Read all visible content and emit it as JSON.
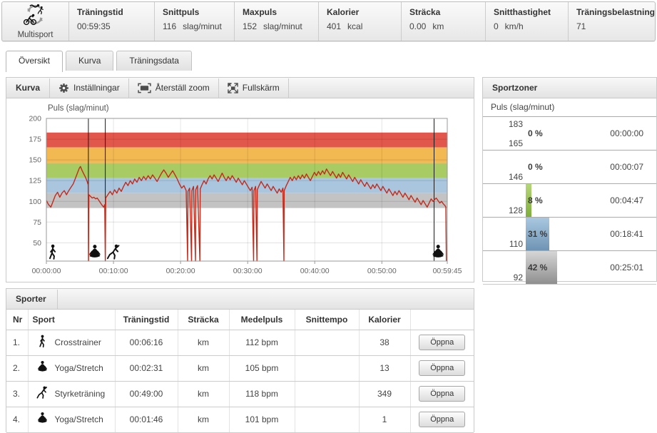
{
  "header": {
    "activity_label": "Multisport",
    "stats": [
      {
        "label": "Träningstid",
        "value": "00:59:35",
        "unit": ""
      },
      {
        "label": "Snittpuls",
        "value": "116",
        "unit": "slag/minut"
      },
      {
        "label": "Maxpuls",
        "value": "152",
        "unit": "slag/minut"
      },
      {
        "label": "Kalorier",
        "value": "401",
        "unit": "kcal"
      },
      {
        "label": "Sträcka",
        "value": "0.00",
        "unit": "km"
      },
      {
        "label": "Snitthastighet",
        "value": "0",
        "unit": "km/h"
      },
      {
        "label": "Träningsbelastning",
        "value": "71",
        "unit": ""
      }
    ]
  },
  "tabs": [
    {
      "label": "Översikt",
      "active": true
    },
    {
      "label": "Kurva",
      "active": false
    },
    {
      "label": "Träningsdata",
      "active": false
    }
  ],
  "curve_panel": {
    "title": "Kurva",
    "buttons": [
      {
        "label": "Inställningar",
        "icon": "gear-icon"
      },
      {
        "label": "Återställ zoom",
        "icon": "reset-zoom-icon"
      },
      {
        "label": "Fullskärm",
        "icon": "fullscreen-icon"
      }
    ]
  },
  "chart_data": {
    "type": "line",
    "title": "Puls (slag/minut)",
    "line_color": "#c22b1c",
    "ylim": [
      28,
      200
    ],
    "y_ticks": [
      200,
      175,
      150,
      125,
      100,
      75,
      50
    ],
    "duration_seconds": 3585,
    "x_ticks": [
      "00:00:00",
      "00:10:00",
      "00:20:00",
      "00:30:00",
      "00:40:00",
      "00:50:00",
      "00:59:45"
    ],
    "x_tick_seconds": [
      0,
      600,
      1200,
      1800,
      2400,
      3000,
      3585
    ],
    "zones": [
      {
        "from": 165,
        "to": 183,
        "color": "#e2574c"
      },
      {
        "from": 146,
        "to": 165,
        "color": "#f2b852"
      },
      {
        "from": 128,
        "to": 146,
        "color": "#a8cb63"
      },
      {
        "from": 110,
        "to": 128,
        "color": "#a9c6de"
      },
      {
        "from": 92,
        "to": 110,
        "color": "#c3c3c3"
      }
    ],
    "lap_markers_seconds": [
      376,
      527,
      3467
    ],
    "sport_icons": [
      {
        "icon": "crosstrainer-icon",
        "t": 55
      },
      {
        "icon": "yoga-icon",
        "t": 430
      },
      {
        "icon": "strength-icon",
        "t": 600
      },
      {
        "icon": "yoga-icon",
        "t": 3500
      }
    ],
    "series": [
      {
        "name": "Puls",
        "points": [
          [
            0,
            101
          ],
          [
            20,
            96
          ],
          [
            40,
            93
          ],
          [
            60,
            100
          ],
          [
            80,
            107
          ],
          [
            100,
            111
          ],
          [
            120,
            105
          ],
          [
            140,
            110
          ],
          [
            160,
            113
          ],
          [
            180,
            108
          ],
          [
            200,
            113
          ],
          [
            220,
            117
          ],
          [
            240,
            121
          ],
          [
            260,
            128
          ],
          [
            280,
            135
          ],
          [
            295,
            140
          ],
          [
            305,
            142
          ],
          [
            320,
            137
          ],
          [
            335,
            133
          ],
          [
            350,
            129
          ],
          [
            365,
            124
          ],
          [
            374,
            120
          ],
          [
            377,
            0
          ],
          [
            380,
            108
          ],
          [
            395,
            106
          ],
          [
            410,
            104
          ],
          [
            425,
            105
          ],
          [
            440,
            103
          ],
          [
            455,
            104
          ],
          [
            470,
            101
          ],
          [
            485,
            98
          ],
          [
            500,
            95
          ],
          [
            512,
            93
          ],
          [
            522,
            96
          ],
          [
            527,
            0
          ],
          [
            531,
            104
          ],
          [
            550,
            108
          ],
          [
            570,
            112
          ],
          [
            590,
            108
          ],
          [
            610,
            114
          ],
          [
            630,
            110
          ],
          [
            650,
            116
          ],
          [
            670,
            112
          ],
          [
            690,
            118
          ],
          [
            710,
            123
          ],
          [
            730,
            119
          ],
          [
            750,
            125
          ],
          [
            770,
            121
          ],
          [
            790,
            127
          ],
          [
            810,
            123
          ],
          [
            830,
            129
          ],
          [
            850,
            125
          ],
          [
            870,
            130
          ],
          [
            890,
            126
          ],
          [
            910,
            131
          ],
          [
            930,
            127
          ],
          [
            950,
            132
          ],
          [
            970,
            128
          ],
          [
            990,
            124
          ],
          [
            1010,
            129
          ],
          [
            1030,
            134
          ],
          [
            1050,
            138
          ],
          [
            1070,
            134
          ],
          [
            1090,
            129
          ],
          [
            1110,
            133
          ],
          [
            1130,
            137
          ],
          [
            1150,
            132
          ],
          [
            1170,
            127
          ],
          [
            1190,
            121
          ],
          [
            1210,
            116
          ],
          [
            1230,
            119
          ],
          [
            1250,
            113
          ],
          [
            1263,
            0
          ],
          [
            1266,
            112
          ],
          [
            1281,
            116
          ],
          [
            1298,
            0
          ],
          [
            1301,
            113
          ],
          [
            1316,
            118
          ],
          [
            1333,
            0
          ],
          [
            1336,
            114
          ],
          [
            1352,
            119
          ],
          [
            1373,
            0
          ],
          [
            1376,
            115
          ],
          [
            1392,
            120
          ],
          [
            1410,
            125
          ],
          [
            1428,
            121
          ],
          [
            1446,
            127
          ],
          [
            1464,
            131
          ],
          [
            1482,
            127
          ],
          [
            1500,
            132
          ],
          [
            1518,
            128
          ],
          [
            1536,
            124
          ],
          [
            1554,
            129
          ],
          [
            1572,
            134
          ],
          [
            1590,
            129
          ],
          [
            1608,
            125
          ],
          [
            1626,
            130
          ],
          [
            1644,
            126
          ],
          [
            1662,
            131
          ],
          [
            1680,
            127
          ],
          [
            1698,
            123
          ],
          [
            1716,
            128
          ],
          [
            1734,
            124
          ],
          [
            1752,
            120
          ],
          [
            1770,
            125
          ],
          [
            1788,
            121
          ],
          [
            1806,
            117
          ],
          [
            1824,
            113
          ],
          [
            1840,
            117
          ],
          [
            1853,
            0
          ],
          [
            1856,
            113
          ],
          [
            1871,
            118
          ],
          [
            1883,
            0
          ],
          [
            1886,
            114
          ],
          [
            1902,
            119
          ],
          [
            1920,
            124
          ],
          [
            1938,
            120
          ],
          [
            1956,
            116
          ],
          [
            1974,
            121
          ],
          [
            1992,
            117
          ],
          [
            2010,
            113
          ],
          [
            2028,
            118
          ],
          [
            2046,
            114
          ],
          [
            2064,
            110
          ],
          [
            2082,
            115
          ],
          [
            2100,
            111
          ],
          [
            2115,
            116
          ],
          [
            2124,
            0
          ],
          [
            2127,
            113
          ],
          [
            2145,
            119
          ],
          [
            2163,
            124
          ],
          [
            2181,
            129
          ],
          [
            2199,
            125
          ],
          [
            2217,
            130
          ],
          [
            2235,
            126
          ],
          [
            2253,
            131
          ],
          [
            2271,
            127
          ],
          [
            2289,
            132
          ],
          [
            2307,
            128
          ],
          [
            2325,
            133
          ],
          [
            2343,
            129
          ],
          [
            2361,
            125
          ],
          [
            2379,
            130
          ],
          [
            2397,
            135
          ],
          [
            2415,
            131
          ],
          [
            2433,
            136
          ],
          [
            2451,
            132
          ],
          [
            2469,
            137
          ],
          [
            2487,
            133
          ],
          [
            2505,
            139
          ],
          [
            2523,
            135
          ],
          [
            2541,
            131
          ],
          [
            2559,
            136
          ],
          [
            2577,
            132
          ],
          [
            2595,
            128
          ],
          [
            2613,
            133
          ],
          [
            2631,
            129
          ],
          [
            2649,
            135
          ],
          [
            2667,
            131
          ],
          [
            2685,
            127
          ],
          [
            2703,
            132
          ],
          [
            2721,
            128
          ],
          [
            2739,
            124
          ],
          [
            2757,
            129
          ],
          [
            2775,
            125
          ],
          [
            2793,
            121
          ],
          [
            2811,
            126
          ],
          [
            2829,
            122
          ],
          [
            2847,
            118
          ],
          [
            2865,
            123
          ],
          [
            2883,
            119
          ],
          [
            2901,
            115
          ],
          [
            2919,
            120
          ],
          [
            2937,
            116
          ],
          [
            2955,
            121
          ],
          [
            2973,
            117
          ],
          [
            2991,
            113
          ],
          [
            3009,
            118
          ],
          [
            3027,
            114
          ],
          [
            3045,
            110
          ],
          [
            3063,
            115
          ],
          [
            3081,
            111
          ],
          [
            3099,
            107
          ],
          [
            3117,
            112
          ],
          [
            3135,
            108
          ],
          [
            3153,
            113
          ],
          [
            3171,
            109
          ],
          [
            3189,
            105
          ],
          [
            3207,
            110
          ],
          [
            3225,
            106
          ],
          [
            3243,
            102
          ],
          [
            3261,
            107
          ],
          [
            3279,
            103
          ],
          [
            3297,
            99
          ],
          [
            3315,
            104
          ],
          [
            3333,
            100
          ],
          [
            3351,
            96
          ],
          [
            3369,
            101
          ],
          [
            3387,
            97
          ],
          [
            3405,
            93
          ],
          [
            3423,
            98
          ],
          [
            3441,
            103
          ],
          [
            3458,
            100
          ],
          [
            3470,
            102
          ],
          [
            3486,
            104
          ],
          [
            3502,
            101
          ],
          [
            3518,
            98
          ],
          [
            3534,
            100
          ],
          [
            3550,
            97
          ],
          [
            3564,
            95
          ],
          [
            3572,
            93
          ],
          [
            3577,
            0
          ]
        ]
      }
    ]
  },
  "sportzones": {
    "title": "Sportzoner",
    "subtitle": "Puls (slag/minut)",
    "zones": [
      {
        "upper": "183",
        "lower": "165",
        "pct": 0,
        "pct_label": "0 %",
        "time": "00:00:00",
        "bar_top": null,
        "bar_bottom": null
      },
      {
        "upper": "",
        "lower": "146",
        "pct": 0,
        "pct_label": "0 %",
        "time": "00:00:07",
        "bar_top": null,
        "bar_bottom": null
      },
      {
        "upper": "",
        "lower": "128",
        "pct": 8,
        "pct_label": "8 %",
        "time": "00:04:47",
        "bar_top": "#b6d678",
        "bar_bottom": "#7fae3c"
      },
      {
        "upper": "",
        "lower": "110",
        "pct": 31,
        "pct_label": "31 %",
        "time": "00:18:41",
        "bar_top": "#a9c8e0",
        "bar_bottom": "#6f94b4"
      },
      {
        "upper": "",
        "lower": "92",
        "pct": 42,
        "pct_label": "42 %",
        "time": "00:25:01",
        "bar_top": "#d6d6d6",
        "bar_bottom": "#8f8f8f"
      }
    ]
  },
  "sports_panel": {
    "title": "Sporter",
    "columns": [
      "Nr",
      "Sport",
      "Träningstid",
      "Sträcka",
      "Medelpuls",
      "Snittempo",
      "Kalorier",
      ""
    ],
    "open_label": "Öppna",
    "rows": [
      {
        "nr": "1.",
        "icon": "crosstrainer-icon",
        "sport": "Crosstrainer",
        "time": "00:06:16",
        "distance": "km",
        "avg_hr": "112 bpm",
        "pace": "",
        "calories": "38"
      },
      {
        "nr": "2.",
        "icon": "yoga-icon",
        "sport": "Yoga/Stretch",
        "time": "00:02:31",
        "distance": "km",
        "avg_hr": "105 bpm",
        "pace": "",
        "calories": "13"
      },
      {
        "nr": "3.",
        "icon": "strength-icon",
        "sport": "Styrketräning",
        "time": "00:49:00",
        "distance": "km",
        "avg_hr": "118 bpm",
        "pace": "",
        "calories": "349"
      },
      {
        "nr": "4.",
        "icon": "yoga-icon",
        "sport": "Yoga/Stretch",
        "time": "00:01:46",
        "distance": "km",
        "avg_hr": "101 bpm",
        "pace": "",
        "calories": "1"
      }
    ]
  }
}
